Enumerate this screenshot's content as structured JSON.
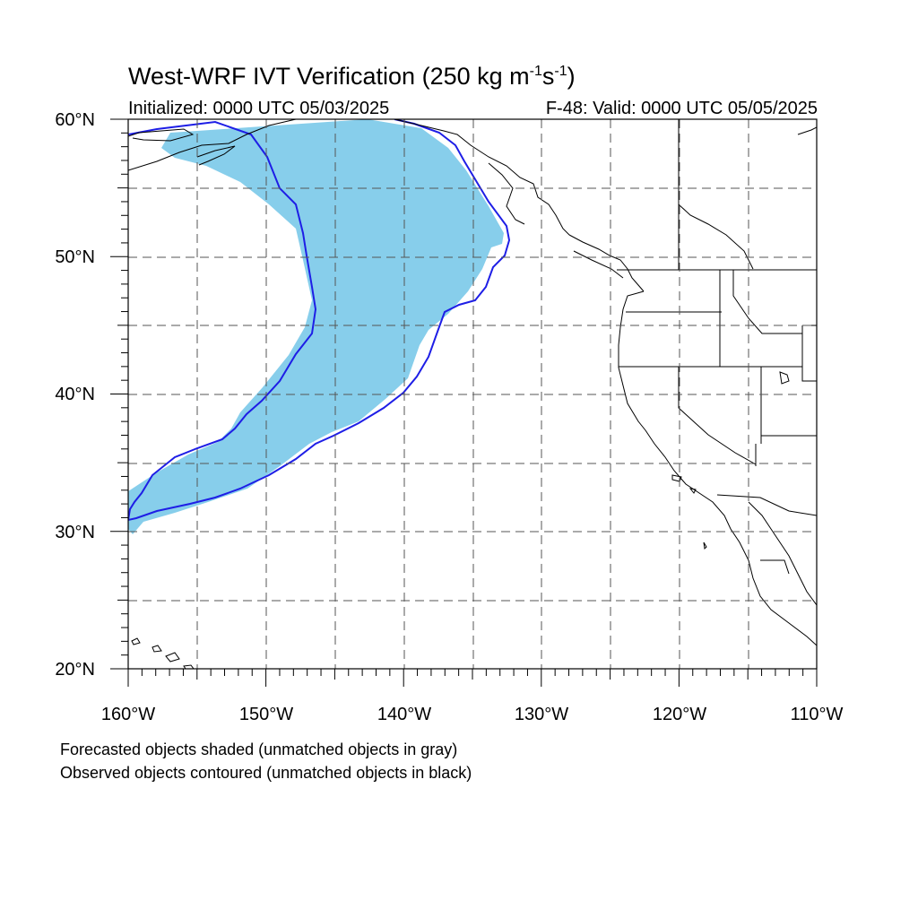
{
  "title": {
    "text": "West-WRF IVT Verification (250 kg m",
    "exp1": "-1",
    "mid": "s",
    "exp2": "-1",
    "end": ")"
  },
  "initialized": "Initialized: 0000 UTC 05/03/2025",
  "valid": "F-48: Valid: 0000 UTC 05/05/2025",
  "lat_labels": [
    "60°N",
    "50°N",
    "40°N",
    "30°N",
    "20°N"
  ],
  "lon_labels": [
    "160°W",
    "150°W",
    "140°W",
    "130°W",
    "120°W",
    "110°W"
  ],
  "notes": [
    "Forecasted objects shaded (unmatched objects in gray)",
    "Observed objects contoured (unmatched objects in black)"
  ],
  "colors": {
    "forecast_fill": "#87CEEB",
    "observed_contour": "#1E1EE6",
    "coastline": "#000000",
    "grid": "#555555"
  }
}
